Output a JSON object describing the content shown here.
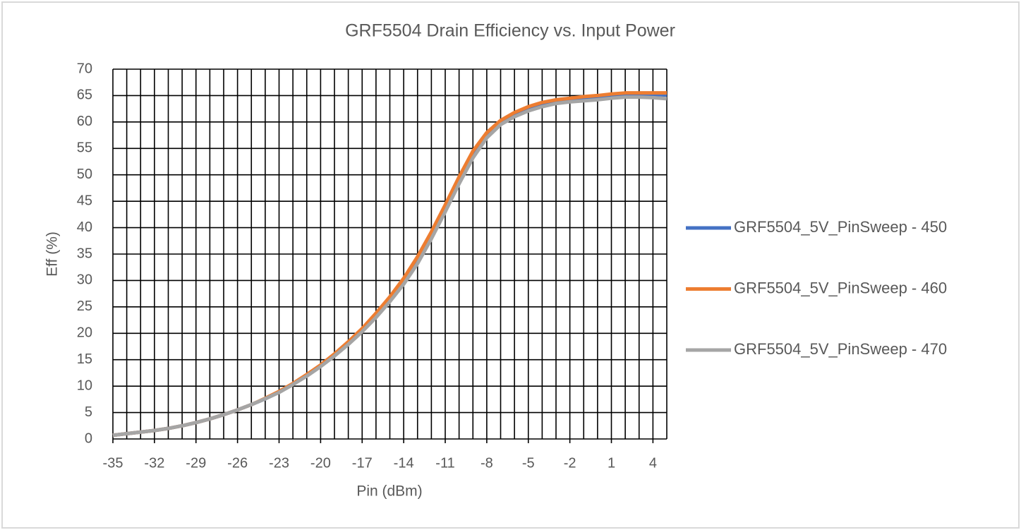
{
  "chart_data": {
    "type": "line",
    "title": "GRF5504 Drain Efficiency vs. Input Power",
    "x_label": "Pin (dBm)",
    "y_label": "Eff (%)",
    "x": [
      -35,
      -34,
      -33,
      -32,
      -31,
      -30,
      -29,
      -28,
      -27,
      -26,
      -25,
      -24,
      -23,
      -22,
      -21,
      -20,
      -19,
      -18,
      -17,
      -16,
      -15,
      -14,
      -13,
      -12,
      -11,
      -10,
      -9,
      -8,
      -7,
      -6,
      -5,
      -4,
      -3,
      -2,
      -1,
      0,
      1,
      2,
      3,
      4,
      5
    ],
    "series": [
      {
        "name": "GRF5504_5V_PinSweep - 450",
        "color": "#4472c4",
        "values": [
          0.7,
          1.0,
          1.3,
          1.6,
          2.0,
          2.5,
          3.1,
          3.8,
          4.6,
          5.5,
          6.5,
          7.6,
          8.9,
          10.4,
          12.0,
          13.8,
          15.8,
          18.0,
          20.4,
          23.1,
          26.1,
          29.4,
          33.4,
          38.2,
          43.3,
          48.6,
          53.5,
          57.3,
          59.7,
          61.3,
          62.5,
          63.3,
          63.9,
          64.2,
          64.5,
          64.7,
          65.0,
          65.2,
          65.2,
          65.2,
          65.1
        ]
      },
      {
        "name": "GRF5504_5V_PinSweep - 460",
        "color": "#ed7d31",
        "values": [
          0.7,
          1.0,
          1.3,
          1.6,
          2.0,
          2.5,
          3.1,
          3.8,
          4.6,
          5.5,
          6.5,
          7.7,
          9.0,
          10.5,
          12.2,
          14.0,
          16.1,
          18.4,
          20.9,
          23.8,
          26.9,
          30.4,
          34.5,
          39.2,
          44.3,
          49.6,
          54.5,
          58.0,
          60.3,
          61.8,
          62.9,
          63.7,
          64.2,
          64.5,
          64.8,
          65.0,
          65.3,
          65.5,
          65.5,
          65.5,
          65.5
        ]
      },
      {
        "name": "GRF5504_5V_PinSweep - 470",
        "color": "#a5a5a5",
        "values": [
          0.7,
          1.0,
          1.3,
          1.6,
          2.0,
          2.5,
          3.1,
          3.8,
          4.6,
          5.5,
          6.5,
          7.6,
          8.8,
          10.3,
          11.9,
          13.7,
          15.7,
          17.9,
          20.3,
          23.0,
          26.0,
          29.3,
          33.2,
          37.9,
          43.0,
          48.3,
          53.2,
          57.0,
          59.5,
          61.0,
          62.1,
          62.9,
          63.5,
          63.8,
          64.0,
          64.2,
          64.5,
          64.7,
          64.7,
          64.6,
          64.4
        ]
      }
    ],
    "xlim": [
      -35,
      5
    ],
    "xticks": [
      -35,
      -32,
      -29,
      -26,
      -23,
      -20,
      -17,
      -14,
      -11,
      -8,
      -5,
      -2,
      1,
      4
    ],
    "x_grid_step": 1,
    "ylim": [
      0,
      70
    ],
    "yticks": [
      0,
      5,
      10,
      15,
      20,
      25,
      30,
      35,
      40,
      45,
      50,
      55,
      60,
      65,
      70
    ],
    "grid": true,
    "legend": "right"
  }
}
